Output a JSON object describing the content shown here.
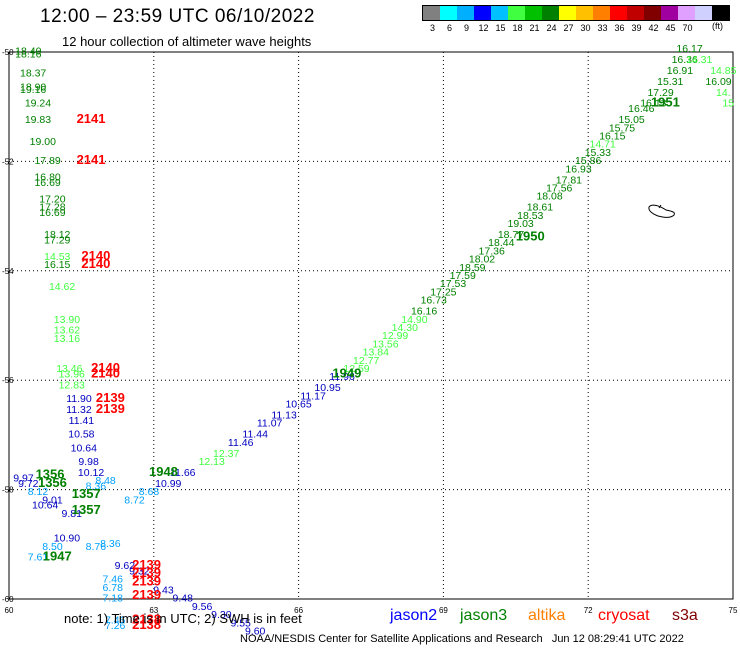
{
  "header": {
    "title": "12:00 – 23:59 UTC 06/10/2022",
    "subtitle": "12 hour collection of altimeter wave heights"
  },
  "legend": {
    "colors": [
      "#808080",
      "#00ffff",
      "#00b0ff",
      "#0000ff",
      "#00c0ff",
      "#40ff40",
      "#00c000",
      "#008000",
      "#ffff00",
      "#ffc000",
      "#ff8000",
      "#ff0000",
      "#c00000",
      "#800000",
      "#a000a0",
      "#e0a0ff",
      "#d0d0ff",
      "#000000"
    ],
    "labels": [
      "3",
      "6",
      "9",
      "12",
      "15",
      "18",
      "21",
      "24",
      "27",
      "30",
      "33",
      "36",
      "39",
      "42",
      "45",
      "70"
    ],
    "unit": "(ft)"
  },
  "map": {
    "x_ticks": [
      "60",
      "63",
      "66",
      "69",
      "72",
      "75"
    ],
    "y_ticks": [
      "-50",
      "-52",
      "-54",
      "-56",
      "-58",
      "-60"
    ],
    "coastline": "island"
  },
  "track_labels": [
    {
      "t": "1951",
      "lon": 73.6,
      "lat": -51.0,
      "c": "#008000"
    },
    {
      "t": "1950",
      "lon": 70.8,
      "lat": -53.45,
      "c": "#008000"
    },
    {
      "t": "1949",
      "lon": 67.0,
      "lat": -55.95,
      "c": "#008000"
    },
    {
      "t": "1948",
      "lon": 63.2,
      "lat": -57.75,
      "c": "#008000"
    },
    {
      "t": "1947",
      "lon": 61.0,
      "lat": -59.3,
      "c": "#008000"
    },
    {
      "t": "2141",
      "lon": 61.7,
      "lat": -51.3,
      "c": "#ff0000"
    },
    {
      "t": "2141",
      "lon": 61.7,
      "lat": -52.05,
      "c": "#ff0000"
    },
    {
      "t": "2140",
      "lon": 61.8,
      "lat": -53.8,
      "c": "#ff0000"
    },
    {
      "t": "2140",
      "lon": 61.8,
      "lat": -53.95,
      "c": "#ff0000"
    },
    {
      "t": "2140",
      "lon": 62.0,
      "lat": -55.85,
      "c": "#ff0000"
    },
    {
      "t": "2140",
      "lon": 62.0,
      "lat": -55.95,
      "c": "#ff0000"
    },
    {
      "t": "2139",
      "lon": 62.1,
      "lat": -56.4,
      "c": "#ff0000"
    },
    {
      "t": "2139",
      "lon": 62.1,
      "lat": -56.6,
      "c": "#ff0000"
    },
    {
      "t": "2139",
      "lon": 62.85,
      "lat": -59.45,
      "c": "#ff0000"
    },
    {
      "t": "2139",
      "lon": 62.85,
      "lat": -59.6,
      "c": "#ff0000"
    },
    {
      "t": "2139",
      "lon": 62.85,
      "lat": -59.75,
      "c": "#ff0000"
    },
    {
      "t": "2139",
      "lon": 62.85,
      "lat": -60.0,
      "c": "#ff0000"
    },
    {
      "t": "2138",
      "lon": 62.85,
      "lat": -60.45,
      "c": "#ff0000"
    },
    {
      "t": "2138",
      "lon": 62.85,
      "lat": -60.55,
      "c": "#ff0000"
    },
    {
      "t": "1356",
      "lon": 60.85,
      "lat": -57.8,
      "c": "#008000"
    },
    {
      "t": "1356",
      "lon": 60.9,
      "lat": -57.95,
      "c": "#008000"
    },
    {
      "t": "1357",
      "lon": 61.6,
      "lat": -58.15,
      "c": "#008000"
    },
    {
      "t": "1357",
      "lon": 61.6,
      "lat": -58.45,
      "c": "#008000"
    }
  ],
  "observations": [
    {
      "v": "16.17",
      "lon": 74.1,
      "lat": -50.0,
      "c": "#008000"
    },
    {
      "v": "16.36",
      "lon": 74.0,
      "lat": -50.2,
      "c": "#008000"
    },
    {
      "v": "14.31",
      "lon": 74.3,
      "lat": -50.2,
      "c": "#40ff40"
    },
    {
      "v": "16.91",
      "lon": 73.9,
      "lat": -50.4,
      "c": "#008000"
    },
    {
      "v": "14.85",
      "lon": 74.8,
      "lat": -50.4,
      "c": "#40ff40"
    },
    {
      "v": "15.31",
      "lon": 73.7,
      "lat": -50.6,
      "c": "#008000"
    },
    {
      "v": "16.09",
      "lon": 74.7,
      "lat": -50.6,
      "c": "#008000"
    },
    {
      "v": "17.29",
      "lon": 73.5,
      "lat": -50.8,
      "c": "#008000"
    },
    {
      "v": "14.",
      "lon": 74.8,
      "lat": -50.8,
      "c": "#40ff40"
    },
    {
      "v": "16.13",
      "lon": 73.35,
      "lat": -51.0,
      "c": "#008000"
    },
    {
      "v": "15",
      "lon": 74.9,
      "lat": -51.0,
      "c": "#40ff40"
    },
    {
      "v": "16.46",
      "lon": 73.1,
      "lat": -51.1,
      "c": "#008000"
    },
    {
      "v": "15.05",
      "lon": 72.9,
      "lat": -51.3,
      "c": "#008000"
    },
    {
      "v": "15.75",
      "lon": 72.7,
      "lat": -51.45,
      "c": "#008000"
    },
    {
      "v": "16.15",
      "lon": 72.5,
      "lat": -51.6,
      "c": "#008000"
    },
    {
      "v": "14.71",
      "lon": 72.3,
      "lat": -51.75,
      "c": "#40ff40"
    },
    {
      "v": "15.33",
      "lon": 72.2,
      "lat": -51.9,
      "c": "#008000"
    },
    {
      "v": "15.86",
      "lon": 72.0,
      "lat": -52.05,
      "c": "#008000"
    },
    {
      "v": "16.93",
      "lon": 71.8,
      "lat": -52.2,
      "c": "#008000"
    },
    {
      "v": "17.81",
      "lon": 71.6,
      "lat": -52.4,
      "c": "#008000"
    },
    {
      "v": "17.56",
      "lon": 71.4,
      "lat": -52.55,
      "c": "#008000"
    },
    {
      "v": "18.08",
      "lon": 71.2,
      "lat": -52.7,
      "c": "#008000"
    },
    {
      "v": "18.61",
      "lon": 71.0,
      "lat": -52.9,
      "c": "#008000"
    },
    {
      "v": "18.53",
      "lon": 70.8,
      "lat": -53.05,
      "c": "#008000"
    },
    {
      "v": "19.03",
      "lon": 70.6,
      "lat": -53.2,
      "c": "#008000"
    },
    {
      "v": "18.77",
      "lon": 70.4,
      "lat": -53.4,
      "c": "#008000"
    },
    {
      "v": "18.44",
      "lon": 70.2,
      "lat": -53.55,
      "c": "#008000"
    },
    {
      "v": "17.36",
      "lon": 70.0,
      "lat": -53.7,
      "c": "#008000"
    },
    {
      "v": "18.02",
      "lon": 69.8,
      "lat": -53.85,
      "c": "#008000"
    },
    {
      "v": "18.59",
      "lon": 69.6,
      "lat": -54.0,
      "c": "#008000"
    },
    {
      "v": "17.59",
      "lon": 69.4,
      "lat": -54.15,
      "c": "#008000"
    },
    {
      "v": "17.53",
      "lon": 69.2,
      "lat": -54.3,
      "c": "#008000"
    },
    {
      "v": "17.25",
      "lon": 69.0,
      "lat": -54.45,
      "c": "#008000"
    },
    {
      "v": "16.73",
      "lon": 68.8,
      "lat": -54.6,
      "c": "#008000"
    },
    {
      "v": "16.16",
      "lon": 68.6,
      "lat": -54.8,
      "c": "#008000"
    },
    {
      "v": "14.90",
      "lon": 68.4,
      "lat": -54.95,
      "c": "#40ff40"
    },
    {
      "v": "14.30",
      "lon": 68.2,
      "lat": -55.1,
      "c": "#40ff40"
    },
    {
      "v": "12.99",
      "lon": 68.0,
      "lat": -55.25,
      "c": "#40ff40"
    },
    {
      "v": "13.56",
      "lon": 67.8,
      "lat": -55.4,
      "c": "#40ff40"
    },
    {
      "v": "13.84",
      "lon": 67.6,
      "lat": -55.55,
      "c": "#40ff40"
    },
    {
      "v": "12.77",
      "lon": 67.4,
      "lat": -55.7,
      "c": "#40ff40"
    },
    {
      "v": "12.59",
      "lon": 67.2,
      "lat": -55.85,
      "c": "#40ff40"
    },
    {
      "v": "11.96",
      "lon": 66.9,
      "lat": -56.0,
      "c": "#0000c0"
    },
    {
      "v": "10.95",
      "lon": 66.6,
      "lat": -56.2,
      "c": "#0000c0"
    },
    {
      "v": "11.17",
      "lon": 66.3,
      "lat": -56.35,
      "c": "#0000c0"
    },
    {
      "v": "10.65",
      "lon": 66.0,
      "lat": -56.5,
      "c": "#0000c0"
    },
    {
      "v": "11.13",
      "lon": 65.7,
      "lat": -56.7,
      "c": "#0000c0"
    },
    {
      "v": "11.07",
      "lon": 65.4,
      "lat": -56.85,
      "c": "#0000c0"
    },
    {
      "v": "11.44",
      "lon": 65.1,
      "lat": -57.05,
      "c": "#0000c0"
    },
    {
      "v": "11.46",
      "lon": 64.8,
      "lat": -57.2,
      "c": "#0000c0"
    },
    {
      "v": "12.37",
      "lon": 64.5,
      "lat": -57.4,
      "c": "#40ff40"
    },
    {
      "v": "12.13",
      "lon": 64.2,
      "lat": -57.55,
      "c": "#40ff40"
    },
    {
      "v": "11.66",
      "lon": 63.6,
      "lat": -57.75,
      "c": "#0000c0"
    },
    {
      "v": "10.99",
      "lon": 63.3,
      "lat": -57.95,
      "c": "#0000c0"
    },
    {
      "v": "8.68",
      "lon": 62.9,
      "lat": -58.1,
      "c": "#00a0ff"
    },
    {
      "v": "8.72",
      "lon": 62.6,
      "lat": -58.25,
      "c": "#00a0ff"
    },
    {
      "v": "18.40",
      "lon": 60.4,
      "lat": -50.05,
      "c": "#008000"
    },
    {
      "v": "18.16",
      "lon": 60.4,
      "lat": -50.1,
      "c": "#008000"
    },
    {
      "v": "18.37",
      "lon": 60.5,
      "lat": -50.45,
      "c": "#008000"
    },
    {
      "v": "18.90",
      "lon": 60.5,
      "lat": -50.7,
      "c": "#008000"
    },
    {
      "v": "19.16",
      "lon": 60.5,
      "lat": -50.75,
      "c": "#008000"
    },
    {
      "v": "19.24",
      "lon": 60.6,
      "lat": -51.0,
      "c": "#008000"
    },
    {
      "v": "19.83",
      "lon": 60.6,
      "lat": -51.3,
      "c": "#008000"
    },
    {
      "v": "19.00",
      "lon": 60.7,
      "lat": -51.7,
      "c": "#008000"
    },
    {
      "v": "17.89",
      "lon": 60.8,
      "lat": -52.05,
      "c": "#008000"
    },
    {
      "v": "16.80",
      "lon": 60.8,
      "lat": -52.35,
      "c": "#008000"
    },
    {
      "v": "16.69",
      "lon": 60.8,
      "lat": -52.45,
      "c": "#008000"
    },
    {
      "v": "17.20",
      "lon": 60.9,
      "lat": -52.75,
      "c": "#008000"
    },
    {
      "v": "17.28",
      "lon": 60.9,
      "lat": -52.9,
      "c": "#008000"
    },
    {
      "v": "16.69",
      "lon": 60.9,
      "lat": -53.0,
      "c": "#008000"
    },
    {
      "v": "18.12",
      "lon": 61.0,
      "lat": -53.4,
      "c": "#008000"
    },
    {
      "v": "17.29",
      "lon": 61.0,
      "lat": -53.5,
      "c": "#008000"
    },
    {
      "v": "14.53",
      "lon": 61.0,
      "lat": -53.8,
      "c": "#40ff40"
    },
    {
      "v": "16.15",
      "lon": 61.0,
      "lat": -53.95,
      "c": "#008000"
    },
    {
      "v": "14.62",
      "lon": 61.1,
      "lat": -54.35,
      "c": "#40ff40"
    },
    {
      "v": "13.90",
      "lon": 61.2,
      "lat": -54.95,
      "c": "#40ff40"
    },
    {
      "v": "13.62",
      "lon": 61.2,
      "lat": -55.15,
      "c": "#40ff40"
    },
    {
      "v": "13.16",
      "lon": 61.2,
      "lat": -55.3,
      "c": "#40ff40"
    },
    {
      "v": "13.46",
      "lon": 61.25,
      "lat": -55.85,
      "c": "#40ff40"
    },
    {
      "v": "13.96",
      "lon": 61.3,
      "lat": -55.95,
      "c": "#40ff40"
    },
    {
      "v": "12.83",
      "lon": 61.3,
      "lat": -56.15,
      "c": "#40ff40"
    },
    {
      "v": "11.90",
      "lon": 61.45,
      "lat": -56.4,
      "c": "#0000c0"
    },
    {
      "v": "11.32",
      "lon": 61.45,
      "lat": -56.6,
      "c": "#0000c0"
    },
    {
      "v": "11.41",
      "lon": 61.5,
      "lat": -56.8,
      "c": "#0000c0"
    },
    {
      "v": "10.58",
      "lon": 61.5,
      "lat": -57.05,
      "c": "#0000c0"
    },
    {
      "v": "10.64",
      "lon": 61.55,
      "lat": -57.3,
      "c": "#0000c0"
    },
    {
      "v": "9.98",
      "lon": 61.65,
      "lat": -57.55,
      "c": "#0000c0"
    },
    {
      "v": "10.12",
      "lon": 61.7,
      "lat": -57.75,
      "c": "#0000c0"
    },
    {
      "v": "9.97",
      "lon": 60.3,
      "lat": -57.85,
      "c": "#0000c0"
    },
    {
      "v": "9.72",
      "lon": 60.4,
      "lat": -57.95,
      "c": "#0000c0"
    },
    {
      "v": "8.48",
      "lon": 62.0,
      "lat": -57.9,
      "c": "#00a0ff"
    },
    {
      "v": "8.36",
      "lon": 61.8,
      "lat": -58.0,
      "c": "#00a0ff"
    },
    {
      "v": "8.12",
      "lon": 60.6,
      "lat": -58.1,
      "c": "#00a0ff"
    },
    {
      "v": "9.01",
      "lon": 60.9,
      "lat": -58.25,
      "c": "#0000c0"
    },
    {
      "v": "10.64",
      "lon": 60.75,
      "lat": -58.35,
      "c": "#0000c0"
    },
    {
      "v": "9.81",
      "lon": 61.3,
      "lat": -58.5,
      "c": "#0000c0"
    },
    {
      "v": "8.50",
      "lon": 60.9,
      "lat": -59.1,
      "c": "#00a0ff"
    },
    {
      "v": "7.61",
      "lon": 60.6,
      "lat": -59.3,
      "c": "#00a0ff"
    },
    {
      "v": "10.90",
      "lon": 61.2,
      "lat": -58.95,
      "c": "#0000c0"
    },
    {
      "v": "8.76",
      "lon": 61.8,
      "lat": -59.1,
      "c": "#00a0ff"
    },
    {
      "v": "8.36",
      "lon": 62.1,
      "lat": -59.05,
      "c": "#00a0ff"
    },
    {
      "v": "9.62",
      "lon": 62.4,
      "lat": -59.45,
      "c": "#0000c0"
    },
    {
      "v": "9.32",
      "lon": 62.7,
      "lat": -59.55,
      "c": "#0000c0"
    },
    {
      "v": "7.46",
      "lon": 62.15,
      "lat": -59.7,
      "c": "#00a0ff"
    },
    {
      "v": "6.78",
      "lon": 62.15,
      "lat": -59.85,
      "c": "#00a0ff"
    },
    {
      "v": "7.18",
      "lon": 62.15,
      "lat": -60.05,
      "c": "#00a0ff"
    },
    {
      "v": "9.43",
      "lon": 63.2,
      "lat": -59.9,
      "c": "#0000c0"
    },
    {
      "v": "9.48",
      "lon": 63.6,
      "lat": -60.05,
      "c": "#0000c0"
    },
    {
      "v": "9.56",
      "lon": 64.0,
      "lat": -60.2,
      "c": "#0000c0"
    },
    {
      "v": "9.30",
      "lon": 64.4,
      "lat": -60.35,
      "c": "#0000c0"
    },
    {
      "v": "9.55",
      "lon": 64.8,
      "lat": -60.5,
      "c": "#0000c0"
    },
    {
      "v": "9.60",
      "lon": 65.1,
      "lat": -60.65,
      "c": "#0000c0"
    },
    {
      "v": "7.46",
      "lon": 62.2,
      "lat": -60.45,
      "c": "#00a0ff"
    },
    {
      "v": "7.26",
      "lon": 62.2,
      "lat": -60.55,
      "c": "#00a0ff"
    }
  ],
  "note": "note: 1) Time is in UTC; 2) SWH is in feet",
  "satellites": [
    {
      "name": "jason2",
      "color": "#0000ff"
    },
    {
      "name": "jason3",
      "color": "#008000"
    },
    {
      "name": "altika",
      "color": "#ff8000"
    },
    {
      "name": "cryosat",
      "color": "#ff0000"
    },
    {
      "name": "s3a",
      "color": "#800000"
    }
  ],
  "footer": "NOAA/NESDIS Center for Satellite Applications and Research   Jun 12 08:29:41 UTC 2022"
}
